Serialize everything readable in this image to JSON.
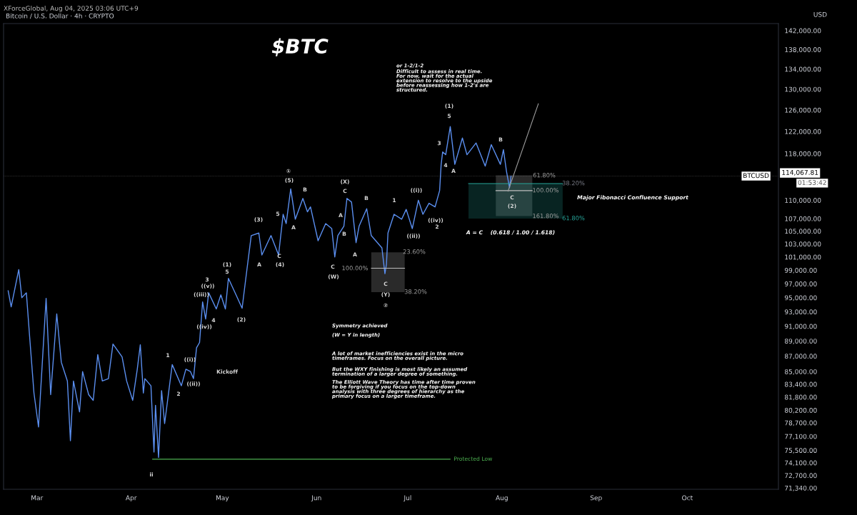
{
  "chart_data": {
    "type": "line",
    "title": "$BTC",
    "subtitle": "Bitcoin / U.S. Dollar · 4h · CRYPTO",
    "ylabel": "USD",
    "log": "y",
    "grid": false,
    "legend": false,
    "xlim": [
      "2025-02-18",
      "2025-10-31"
    ],
    "xticks": [
      {
        "value": "2025-03-01",
        "label": "Mar"
      },
      {
        "value": "2025-04-01",
        "label": "Apr"
      },
      {
        "value": "2025-05-01",
        "label": "May"
      },
      {
        "value": "2025-06-01",
        "label": "Jun"
      },
      {
        "value": "2025-07-01",
        "label": "Jul"
      },
      {
        "value": "2025-08-01",
        "label": "Aug"
      },
      {
        "value": "2025-09-01",
        "label": "Sep"
      },
      {
        "value": "2025-10-01",
        "label": "Oct"
      }
    ],
    "ylim": [
      71200,
      143500
    ],
    "yticks": [
      {
        "value": 142000,
        "label": "142,000.00"
      },
      {
        "value": 138000,
        "label": "138,000.00"
      },
      {
        "value": 134000,
        "label": "134,000.00"
      },
      {
        "value": 130000,
        "label": "130,000.00"
      },
      {
        "value": 126000,
        "label": "126,000.00"
      },
      {
        "value": 122000,
        "label": "122,000.00"
      },
      {
        "value": 118000,
        "label": "118,000.00"
      },
      {
        "value": 110000,
        "label": "110,000.00"
      },
      {
        "value": 107000,
        "label": "107,000.00"
      },
      {
        "value": 105000,
        "label": "105,000.00"
      },
      {
        "value": 103000,
        "label": "103,000.00"
      },
      {
        "value": 101000,
        "label": "101,000.00"
      },
      {
        "value": 99000,
        "label": "99,000.00"
      },
      {
        "value": 97000,
        "label": "97,000.00"
      },
      {
        "value": 95000,
        "label": "95,000.00"
      },
      {
        "value": 93000,
        "label": "93,000.00"
      },
      {
        "value": 91000,
        "label": "91,000.00"
      },
      {
        "value": 89000,
        "label": "89,000.00"
      },
      {
        "value": 87000,
        "label": "87,000.00"
      },
      {
        "value": 85000,
        "label": "85,000.00"
      },
      {
        "value": 83400,
        "label": "83,400.00"
      },
      {
        "value": 81800,
        "label": "81,800.00"
      },
      {
        "value": 80200,
        "label": "80,200.00"
      },
      {
        "value": 78700,
        "label": "78,700.00"
      },
      {
        "value": 77100,
        "label": "77,100.00"
      },
      {
        "value": 75500,
        "label": "75,500.00"
      },
      {
        "value": 74100,
        "label": "74,100.00"
      },
      {
        "value": 72700,
        "label": "72,700.00"
      },
      {
        "value": 71340,
        "label": "71,340.00"
      }
    ],
    "series": [
      {
        "name": "BTCUSD",
        "color": "#5b8ff0",
        "x": [
          "2025-02-19T12:00",
          "2025-02-20T12:00",
          "2025-02-23",
          "2025-02-24",
          "2025-02-25T12:00",
          "2025-02-26T12:00",
          "2025-02-28",
          "2025-03-01T12:00",
          "2025-03-04",
          "2025-03-05T12:00",
          "2025-03-07T12:00",
          "2025-03-09",
          "2025-03-11",
          "2025-03-12",
          "2025-03-13",
          "2025-03-15",
          "2025-03-16",
          "2025-03-18",
          "2025-03-19T12:00",
          "2025-03-21",
          "2025-03-22T12:00",
          "2025-03-24T12:00",
          "2025-03-26",
          "2025-03-29",
          "2025-03-30T12:00",
          "2025-04-01T12:00",
          "2025-04-03",
          "2025-04-04",
          "2025-04-05",
          "2025-04-05T12:00",
          "2025-04-07T12:00",
          "2025-04-08T12:00",
          "2025-04-09",
          "2025-04-10",
          "2025-04-11",
          "2025-04-12",
          "2025-04-14T12:00",
          "2025-04-17T12:00",
          "2025-04-19",
          "2025-04-20T12:00",
          "2025-04-21T12:00",
          "2025-04-22T12:00",
          "2025-04-23T12:00",
          "2025-04-24T12:00",
          "2025-04-25T12:00",
          "2025-04-26T12:00",
          "2025-04-29",
          "2025-04-30T12:00",
          "2025-05-02",
          "2025-05-03",
          "2025-05-05T12:00",
          "2025-05-07T12:00",
          "2025-05-09",
          "2025-05-10T12:00",
          "2025-05-13",
          "2025-05-14",
          "2025-05-17",
          "2025-05-19T12:00",
          "2025-05-21",
          "2025-05-22",
          "2025-05-23T12:00",
          "2025-05-25",
          "2025-05-27T12:00",
          "2025-05-29",
          "2025-05-30",
          "2025-06-01T12:00",
          "2025-06-04",
          "2025-06-06",
          "2025-06-07",
          "2025-06-08",
          "2025-06-10",
          "2025-06-11",
          "2025-06-12T12:00",
          "2025-06-14",
          "2025-06-15",
          "2025-06-17T12:00",
          "2025-06-19",
          "2025-06-22T12:00",
          "2025-06-23T12:00",
          "2025-06-24",
          "2025-06-24T12:00",
          "2025-06-26T12:00",
          "2025-06-29",
          "2025-06-30T12:00",
          "2025-07-02T12:00",
          "2025-07-04T12:00",
          "2025-07-06",
          "2025-07-08",
          "2025-07-10",
          "2025-07-11T12:00",
          "2025-07-12",
          "2025-07-12T12:00",
          "2025-07-13T12:00",
          "2025-07-15",
          "2025-07-16T12:00",
          "2025-07-19",
          "2025-07-20T12:00",
          "2025-07-23T12:00",
          "2025-07-26T12:00",
          "2025-07-28T12:00",
          "2025-07-31T12:00",
          "2025-08-01T12:00",
          "2025-08-02T12:00",
          "2025-08-03T12:00",
          "2025-08-04"
        ],
        "values": [
          96000,
          93700,
          99100,
          95000,
          95700,
          90000,
          82300,
          78200,
          94900,
          82100,
          92700,
          86200,
          83800,
          76600,
          83800,
          80000,
          85000,
          82100,
          81400,
          87200,
          83800,
          84100,
          88600,
          86900,
          83800,
          81400,
          85300,
          88500,
          82300,
          84100,
          83200,
          75300,
          80800,
          74700,
          82600,
          78600,
          85900,
          83200,
          85300,
          85000,
          84100,
          88100,
          88800,
          94400,
          92000,
          95700,
          93400,
          95400,
          93400,
          97800,
          95400,
          93500,
          98800,
          104300,
          104700,
          101300,
          104300,
          101300,
          107700,
          106200,
          111900,
          106900,
          110300,
          108100,
          108900,
          103500,
          106200,
          105400,
          101000,
          104300,
          105800,
          110300,
          109700,
          103200,
          105800,
          108600,
          104300,
          102400,
          98500,
          99900,
          104700,
          107700,
          106900,
          108500,
          105400,
          110000,
          107700,
          109500,
          108900,
          111600,
          116100,
          118300,
          117800,
          122900,
          116100,
          120800,
          117800,
          119900,
          115800,
          119600,
          116100,
          118700,
          114900,
          112100,
          114067.81
        ]
      },
      {
        "name": "Protected Low",
        "color": "#4caf50",
        "x": [
          "2025-04-08",
          "2025-07-15"
        ],
        "values": [
          74500,
          74500
        ]
      },
      {
        "color": "#bdbdbd",
        "x": [
          "2025-06-19",
          "2025-06-30"
        ],
        "values": [
          99300,
          99300
        ],
        "lower": [
          95800,
          95800
        ],
        "upper": [
          101700,
          101700
        ]
      },
      {
        "color": "#bdbdbd",
        "x": [
          "2025-07-30",
          "2025-08-11"
        ],
        "values": [
          111600,
          111600
        ],
        "lower": [
          107400,
          107400
        ],
        "upper": [
          114200,
          114200
        ]
      },
      {
        "color": "#26a69a",
        "x": [
          "2025-07-21",
          "2025-08-21"
        ],
        "values": [
          112800,
          112800
        ],
        "lower": [
          107000,
          107000
        ],
        "upper": [
          112800,
          112800
        ]
      },
      {
        "color": "#9e9e9e",
        "x": [
          "2025-08-03",
          "2025-08-13"
        ],
        "values": [
          111500,
          127200
        ]
      }
    ],
    "ref_lines": [
      {
        "axis": "y",
        "value": 114067.81,
        "label": "114,067.81",
        "color": "#ffffff",
        "line_style": "dotted"
      }
    ],
    "annotations": [
      "XForceGlobal, Aug 04, 2025 03:06 UTC+9",
      "or 1-2/1-2",
      "Difficult to assess in real time.\nFor now, wait for the actual\nextension to resolve to the upside\nbefore reassessing how 1-2's are\nstructured.",
      "Symmetry achieved",
      "(W = Y in length)",
      "A lot of market inefficiencies exist in the micro\ntimeframes. Focus on the overall picture.",
      "But the WXY finishing is most likely an assumed\ntermination of a larger degree of something.",
      "The Elliott Wave Theory has time after time proven\nto be forgiving if you focus on the top-down\nanalysis with three degrees of hierarchy as the\nprimary focus on a larger timeframe.",
      "01:53:42",
      "ii",
      "1",
      "2",
      "((i))",
      "((ii))",
      "((iii))",
      "((iv))",
      "((v))",
      "3",
      "4",
      "(1)",
      "5",
      "Kickoff",
      "(2)",
      "(3)",
      "A",
      "5",
      "C",
      "(4)",
      "①",
      "(5)",
      "A",
      "B",
      "C",
      "(W)",
      "A",
      "B",
      "(X)",
      "C",
      "A",
      "B",
      "C",
      "(Y)",
      "②",
      "1",
      "((i))",
      "((ii))",
      "((iv))",
      "2",
      "3",
      "4",
      "A",
      "5",
      "(1)",
      "B",
      "C",
      "(2)",
      "A = C    (0.618 / 1.00 / 1.618)",
      "Major Fibonacci Confluence Support",
      "23.60%",
      "100.00%",
      "38.20%",
      "61.80%",
      "100.00%",
      "161.80%",
      "38.20%",
      "61.80%"
    ]
  }
}
